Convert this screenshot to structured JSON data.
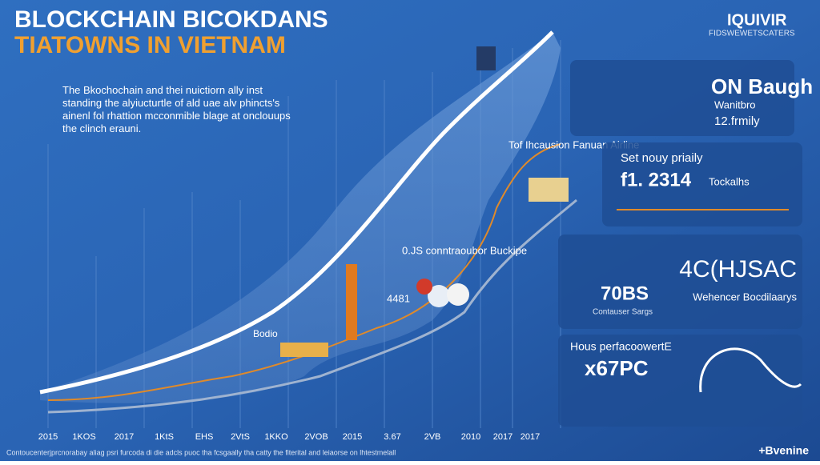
{
  "header": {
    "title_line1": "BLOCKCHAIN BICOKDANS",
    "title_line2": "TIATOWNS IN VIETNAM",
    "logo": "IQUIVIR",
    "logo_sub": "FIDSWEWETSCATERS"
  },
  "intro": "The Bkochochain and thei nuictiorn ally inst standing the alyiucturtle of ald uae alv phincts's ainenl fol rhattion mcconmible blage at onclouups the clinch erauni.",
  "callouts": [
    "Tof Ihcausion Fanuan Airline",
    "0.JS conntraoubor Buckipe",
    "4481",
    "Bodio"
  ],
  "panels": [
    {
      "big": "ON Baugh",
      "line1": "Wanitbro",
      "line2": "12.frmily"
    },
    {
      "heading": "Set nouy priaily",
      "big": "f1. 2314",
      "side": "Tockalhs"
    },
    {
      "big": "4C(HJSAC",
      "stat": "70BS",
      "stat_label": "Contauser Sargs",
      "side": "Wehencer Bocdilaarys"
    },
    {
      "heading": "Hous perfacoowertE",
      "big": "x67PC"
    }
  ],
  "x_labels": [
    "2015",
    "1KOS",
    "2017",
    "1KtS",
    "EHS",
    "2VtS",
    "1KKO",
    "2VOB",
    "2015",
    "3.67",
    "2VB",
    "2010",
    "2017",
    "2017"
  ],
  "footer": "Contoucenterjprcnorabay aliag psri furcoda di die adcls puoc tha fcsgaally tha catty the fiterital and leiaorse on lhtestmelall",
  "brand": "+Bvenine"
}
